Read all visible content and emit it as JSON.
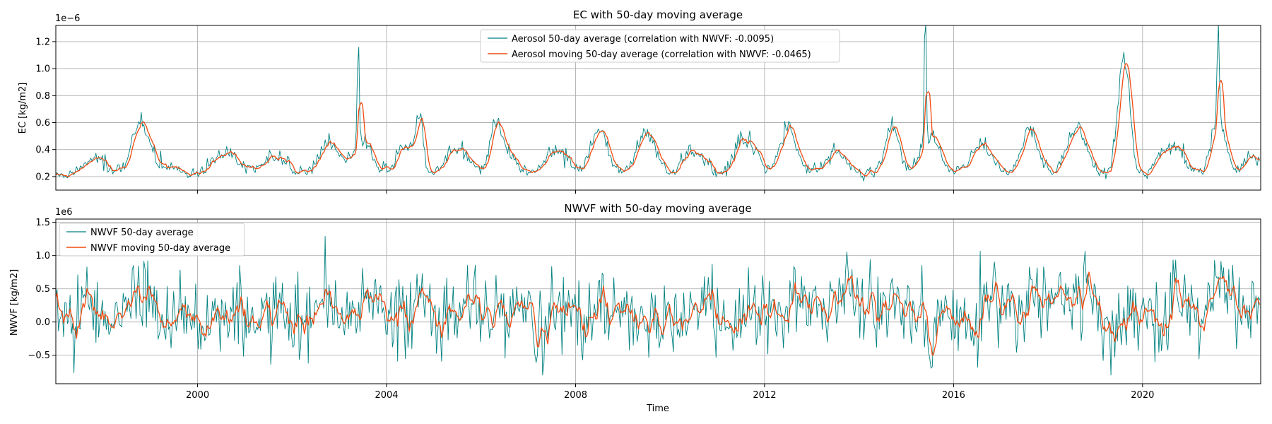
{
  "chart_data": [
    {
      "type": "line",
      "title": "EC with 50-day moving average",
      "xlabel": "",
      "ylabel": "EC [kg/m2]",
      "y_offset_label": "1e−6",
      "xlim": [
        1997.0,
        2022.5
      ],
      "ylim": [
        0.1,
        1.32
      ],
      "yticks": [
        0.2,
        0.4,
        0.6,
        0.8,
        1.0,
        1.2
      ],
      "ytick_labels": [
        "0.2",
        "0.4",
        "0.6",
        "0.8",
        "1.0",
        "1.2"
      ],
      "xticks": [
        2000,
        2004,
        2008,
        2012,
        2016,
        2020
      ],
      "xtick_labels": [
        "",
        "",
        "",
        "",
        "",
        ""
      ],
      "grid": true,
      "legend_position": "top-center",
      "sample_spacing_years": 0.0274,
      "series": [
        {
          "name": "Aerosol 50-day average (correlation with NWVF: -0.0095)",
          "color": "#008080",
          "line_width": 0.9,
          "generator": {
            "base": 0.21,
            "low_max": 0.185,
            "baseline_noise": 0.03,
            "spike_noise": 0.12,
            "spike_prob": 0.03,
            "peaks": [
              [
                1997.8,
                0.12,
                0.22
              ],
              [
                1998.8,
                0.38,
                0.2
              ],
              [
                1999.5,
                0.06,
                0.14
              ],
              [
                2000.6,
                0.17,
                0.25
              ],
              [
                2001.6,
                0.13,
                0.25
              ],
              [
                2002.8,
                0.24,
                0.22
              ],
              [
                2003.4,
                0.85,
                0.02
              ],
              [
                2003.5,
                0.25,
                0.2
              ],
              [
                2004.4,
                0.22,
                0.18
              ],
              [
                2004.7,
                0.38,
                0.08
              ],
              [
                2005.5,
                0.2,
                0.25
              ],
              [
                2006.3,
                0.27,
                0.12
              ],
              [
                2006.5,
                0.18,
                0.22
              ],
              [
                2007.6,
                0.18,
                0.25
              ],
              [
                2008.5,
                0.33,
                0.18
              ],
              [
                2009.5,
                0.3,
                0.2
              ],
              [
                2010.5,
                0.18,
                0.22
              ],
              [
                2011.6,
                0.27,
                0.22
              ],
              [
                2012.5,
                0.33,
                0.18
              ],
              [
                2013.5,
                0.18,
                0.22
              ],
              [
                2014.7,
                0.38,
                0.15
              ],
              [
                2015.4,
                0.98,
                0.02
              ],
              [
                2015.5,
                0.3,
                0.2
              ],
              [
                2016.6,
                0.22,
                0.22
              ],
              [
                2017.6,
                0.32,
                0.18
              ],
              [
                2018.6,
                0.35,
                0.2
              ],
              [
                2019.6,
                0.9,
                0.12
              ],
              [
                2020.6,
                0.22,
                0.25
              ],
              [
                2021.6,
                0.72,
                0.02
              ],
              [
                2021.6,
                0.42,
                0.15
              ],
              [
                2022.3,
                0.15,
                0.15
              ]
            ],
            "seed": 12345
          }
        },
        {
          "name": "Aerosol moving 50-day average (correlation with NWVF: -0.0465)",
          "color": "#f04a0f",
          "line_width": 1.3,
          "derived": "moving_average",
          "window": 5
        }
      ]
    },
    {
      "type": "line",
      "title": "NWVF with 50-day moving average",
      "xlabel": "Time",
      "ylabel": "NWVF [kg/m2]",
      "y_offset_label": "1e6",
      "xlim": [
        1997.0,
        2022.5
      ],
      "ylim": [
        -0.93,
        1.55
      ],
      "yticks": [
        -0.5,
        0.0,
        0.5,
        1.0,
        1.5
      ],
      "ytick_labels": [
        "−0.5",
        "0.0",
        "0.5",
        "1.0",
        "1.5"
      ],
      "xticks": [
        2000,
        2004,
        2008,
        2012,
        2016,
        2020
      ],
      "xtick_labels": [
        "2000",
        "2004",
        "2008",
        "2012",
        "2016",
        "2020"
      ],
      "grid": true,
      "legend_position": "top-left",
      "sample_spacing_years": 0.0274,
      "series": [
        {
          "name": "NWVF 50-day average",
          "color": "#008080",
          "line_width": 0.9,
          "generator": {
            "noise": 0.3,
            "seasonal_amplitude": 0.13,
            "seasonal_phase_year": 1998.75,
            "bursts": [
              [
                1998.8,
                0.25,
                0.25
              ],
              [
                2003.5,
                0.2,
                0.2
              ],
              [
                2006.5,
                0.18,
                0.3
              ],
              [
                2008.5,
                0.15,
                0.2
              ],
              [
                2013.8,
                0.35,
                0.4
              ],
              [
                2017.3,
                0.25,
                0.3
              ],
              [
                2018.7,
                0.35,
                0.3
              ],
              [
                2021.5,
                0.2,
                0.3
              ]
            ],
            "dips": [
              [
                2015.5,
                -0.5,
                0.06
              ],
              [
                2019.5,
                -0.3,
                0.15
              ]
            ],
            "seed": 777
          }
        },
        {
          "name": "NWVF moving 50-day average",
          "color": "#f04a0f",
          "line_width": 1.3,
          "derived": "moving_average",
          "window": 5
        }
      ]
    }
  ]
}
